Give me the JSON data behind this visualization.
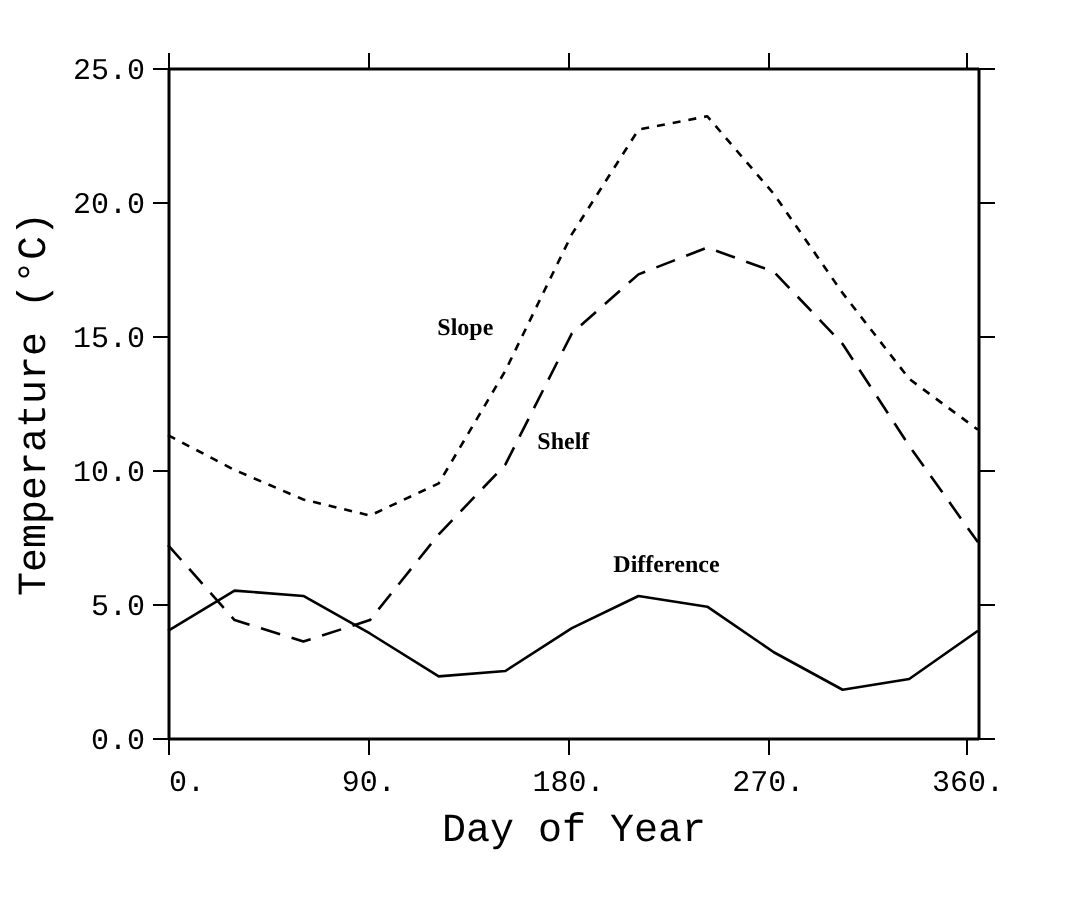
{
  "chart_data": {
    "type": "line",
    "xlabel": "Day of Year",
    "ylabel": "Temperature (°C)",
    "x": [
      0,
      30,
      61,
      91,
      122,
      152,
      182,
      212,
      243,
      273,
      304,
      334,
      365
    ],
    "series": [
      {
        "name": "Slope",
        "color": "#000000",
        "line_style": "dotted",
        "values": [
          11.3,
          10.0,
          8.9,
          8.3,
          9.5,
          13.7,
          18.8,
          22.7,
          23.2,
          20.3,
          16.6,
          13.4,
          11.5
        ]
      },
      {
        "name": "Shelf",
        "color": "#000000",
        "line_style": "dashed",
        "values": [
          7.2,
          4.4,
          3.6,
          4.4,
          7.6,
          10.2,
          15.1,
          17.3,
          18.3,
          17.4,
          14.7,
          10.9,
          7.3
        ]
      },
      {
        "name": "Difference",
        "color": "#000000",
        "line_style": "solid",
        "values": [
          4.0,
          5.5,
          5.3,
          3.9,
          2.3,
          2.5,
          4.1,
          5.3,
          4.9,
          3.2,
          1.8,
          2.2,
          4.0
        ]
      }
    ],
    "xlim": [
      0,
      365
    ],
    "ylim": [
      0,
      25
    ],
    "xticks": [
      {
        "value": 0,
        "label": "0."
      },
      {
        "value": 90,
        "label": "90."
      },
      {
        "value": 180,
        "label": "180."
      },
      {
        "value": 270,
        "label": "270."
      },
      {
        "value": 360,
        "label": "360."
      }
    ],
    "yticks": [
      {
        "value": 0,
        "label": "0.0"
      },
      {
        "value": 5,
        "label": "5.0"
      },
      {
        "value": 10,
        "label": "10.0"
      },
      {
        "value": 15,
        "label": "15.0"
      },
      {
        "value": 20,
        "label": "20.0"
      },
      {
        "value": 25,
        "label": "25.0"
      }
    ],
    "grid": false,
    "marker": "none"
  }
}
